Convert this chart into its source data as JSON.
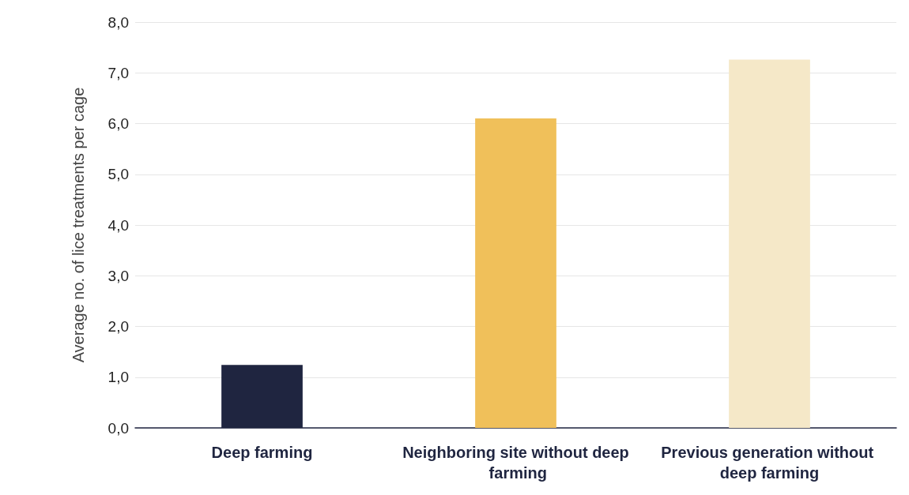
{
  "chart_data": {
    "type": "bar",
    "ylabel": "Average no. of lice treatments per cage",
    "categories": [
      "Deep farming",
      "Neighboring site without deep farming",
      "Previous generation without deep farming"
    ],
    "values": [
      1.24,
      6.1,
      7.26
    ],
    "colors": [
      "#1f2540",
      "#f0c05a",
      "#f5e8c8"
    ],
    "ylim": [
      0,
      8
    ],
    "yticks": [
      {
        "value": 0,
        "label": "0,0"
      },
      {
        "value": 1,
        "label": "1,0"
      },
      {
        "value": 2,
        "label": "2,0"
      },
      {
        "value": 3,
        "label": "3,0"
      },
      {
        "value": 4,
        "label": "4,0"
      },
      {
        "value": 5,
        "label": "5,0"
      },
      {
        "value": 6,
        "label": "6,0"
      },
      {
        "value": 7,
        "label": "7,0"
      },
      {
        "value": 8,
        "label": "8,0"
      }
    ],
    "grid": "y"
  }
}
